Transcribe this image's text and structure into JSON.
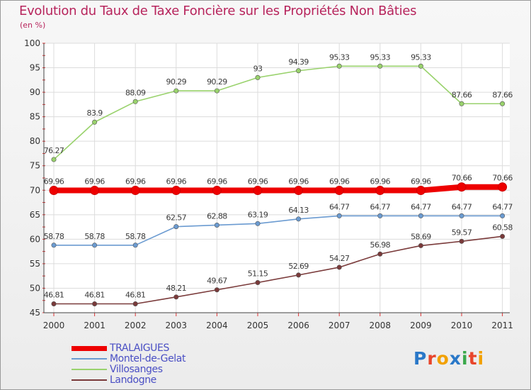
{
  "chart_data": {
    "type": "line",
    "title": "Evolution du Taux de Taxe Foncière sur les Propriétés Non Bâties",
    "subtitle": "(en %)",
    "x": [
      "2000",
      "2001",
      "2002",
      "2003",
      "2004",
      "2005",
      "2006",
      "2007",
      "2008",
      "2009",
      "2010",
      "2011"
    ],
    "ylim": [
      45,
      100
    ],
    "yticks": [
      "45",
      "50",
      "55",
      "60",
      "65",
      "70",
      "75",
      "80",
      "85",
      "90",
      "95",
      "100"
    ],
    "grid": true,
    "legend": "bottom-left",
    "series": [
      {
        "name": "TRALAIGUES",
        "color": "#ee0000",
        "values": [
          69.96,
          69.96,
          69.96,
          69.96,
          69.96,
          69.96,
          69.96,
          69.96,
          69.96,
          69.96,
          70.66,
          70.66
        ],
        "labels": [
          "69.96",
          "69.96",
          "69.96",
          "69.96",
          "69.96",
          "69.96",
          "69.96",
          "69.96",
          "69.96",
          "69.96",
          "70.66",
          "70.66"
        ]
      },
      {
        "name": "Montel-de-Gelat",
        "color": "#6b9bd1",
        "values": [
          58.78,
          58.78,
          58.78,
          62.57,
          62.88,
          63.19,
          64.13,
          64.77,
          64.77,
          64.77,
          64.77,
          64.77
        ],
        "labels": [
          "58.78",
          "58.78",
          "58.78",
          "62.57",
          "62.88",
          "63.19",
          "64.13",
          "64.77",
          "64.77",
          "64.77",
          "64.77",
          "64.77"
        ]
      },
      {
        "name": "Villosanges",
        "color": "#99d26c",
        "values": [
          76.27,
          83.9,
          88.09,
          90.29,
          90.29,
          93,
          94.39,
          95.33,
          95.33,
          95.33,
          87.66,
          87.66
        ],
        "labels": [
          "76.27",
          "83.9",
          "88.09",
          "90.29",
          "90.29",
          "93",
          "94.39",
          "95.33",
          "95.33",
          "95.33",
          "87.66",
          "87.66"
        ]
      },
      {
        "name": "Landogne",
        "color": "#7a3a3a",
        "values": [
          46.81,
          46.81,
          46.81,
          48.21,
          49.67,
          51.15,
          52.69,
          54.27,
          56.98,
          58.69,
          59.57,
          60.58
        ],
        "labels": [
          "46.81",
          "46.81",
          "46.81",
          "48.21",
          "49.67",
          "51.15",
          "52.69",
          "54.27",
          "56.98",
          "58.69",
          "59.57",
          "60.58"
        ]
      }
    ]
  },
  "logo": {
    "text": "Proxiti",
    "colors": [
      "#2a78c8",
      "#e8452b",
      "#f2a100",
      "#2a78c8",
      "#3aa84a",
      "#e8452b",
      "#f2a100"
    ]
  }
}
